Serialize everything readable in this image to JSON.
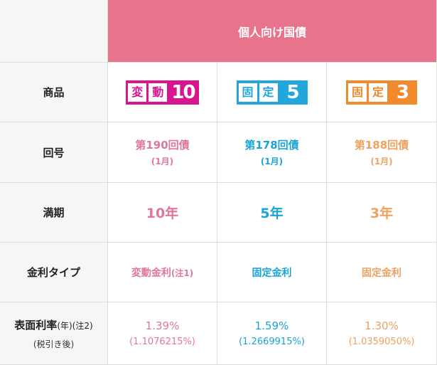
{
  "header": {
    "title": "個人向け国債"
  },
  "rows": {
    "product_label": "商品",
    "issue_label": "回号",
    "maturity_label": "満期",
    "rate_type_label": "金利タイプ",
    "rate_label_main": "表面利率",
    "rate_label_suffix": "(年)(注2)",
    "rate_label_sub": "(税引き後)"
  },
  "products": [
    {
      "badge_chars": [
        "変",
        "動"
      ],
      "badge_number": "10",
      "issue": "第190回債",
      "issue_month": "(1月)",
      "maturity": "10年",
      "rate_type": "変動金利",
      "rate_type_note": "(注1)",
      "rate": "1.39%",
      "rate_after_tax": "(1.1076215%)",
      "color": "#d9158e"
    },
    {
      "badge_chars": [
        "固",
        "定"
      ],
      "badge_number": "5",
      "issue": "第178回債",
      "issue_month": "(1月)",
      "maturity": "5年",
      "rate_type": "固定金利",
      "rate_type_note": "",
      "rate": "1.59%",
      "rate_after_tax": "(1.2669915%)",
      "color": "#22a6dc"
    },
    {
      "badge_chars": [
        "固",
        "定"
      ],
      "badge_number": "3",
      "issue": "第188回債",
      "issue_month": "(1月)",
      "maturity": "3年",
      "rate_type": "固定金利",
      "rate_type_note": "",
      "rate": "1.30%",
      "rate_after_tax": "(1.0359050%)",
      "color": "#f08a2d"
    }
  ]
}
